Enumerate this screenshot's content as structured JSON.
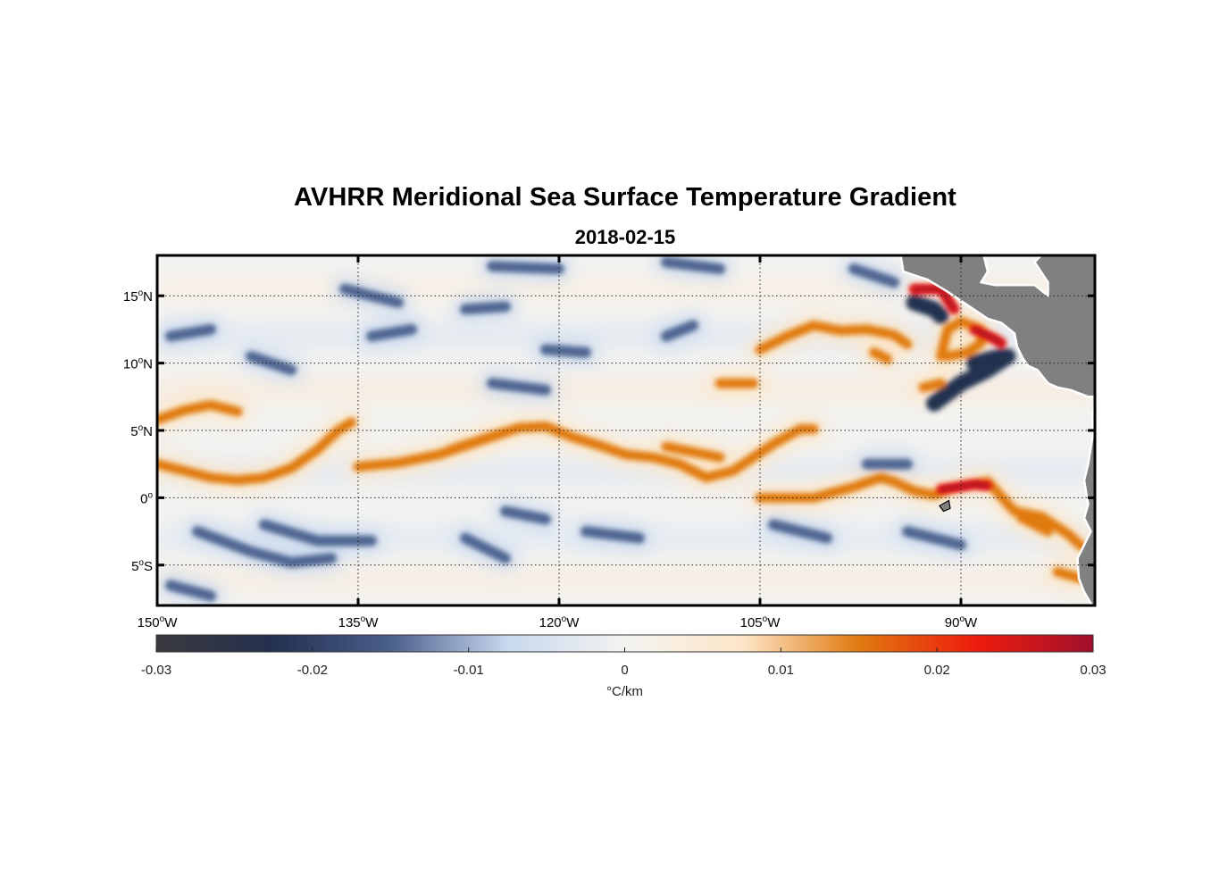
{
  "figure": {
    "title": "AVHRR Meridional Sea Surface Temperature Gradient",
    "subtitle": "2018-02-15"
  },
  "map": {
    "projection": "equirectangular",
    "lon_range": [
      -150,
      -80
    ],
    "lat_range": [
      -8,
      18
    ],
    "gridlines": true,
    "land_color": "#808080",
    "lon_ticks": [
      {
        "value": -150,
        "num": "150",
        "hemi": "W"
      },
      {
        "value": -135,
        "num": "135",
        "hemi": "W"
      },
      {
        "value": -120,
        "num": "120",
        "hemi": "W"
      },
      {
        "value": -105,
        "num": "105",
        "hemi": "W"
      },
      {
        "value": -90,
        "num": "90",
        "hemi": "W"
      }
    ],
    "lat_ticks": [
      {
        "value": 15,
        "num": "15",
        "hemi": "N"
      },
      {
        "value": 10,
        "num": "10",
        "hemi": "N"
      },
      {
        "value": 5,
        "num": "5",
        "hemi": "N"
      },
      {
        "value": 0,
        "num": "0",
        "hemi": ""
      },
      {
        "value": -5,
        "num": "5",
        "hemi": "S"
      }
    ]
  },
  "colorbar": {
    "min": -0.03,
    "max": 0.03,
    "ticks": [
      "-0.03",
      "-0.02",
      "-0.01",
      "0",
      "0.01",
      "0.02",
      "0.03"
    ],
    "label": "°C/km",
    "colors": [
      "#3a3a3e",
      "#24304f",
      "#4a5f8c",
      "#c8d8ee",
      "#f3f3f1",
      "#fde6c8",
      "#e07a10",
      "#ee1c0c",
      "#a0102c"
    ]
  },
  "features": {
    "positive_fronts": [
      {
        "name": "equatorial-front-west",
        "points": [
          [
            -150,
            2.5
          ],
          [
            -148,
            2.0
          ],
          [
            -146,
            1.5
          ],
          [
            -144,
            1.3
          ],
          [
            -142,
            1.5
          ],
          [
            -140,
            2.2
          ],
          [
            -138,
            3.6
          ],
          [
            -136.5,
            5.0
          ],
          [
            -135.5,
            5.6
          ]
        ]
      },
      {
        "name": "equatorial-front-central",
        "points": [
          [
            -135,
            2.3
          ],
          [
            -132,
            2.6
          ],
          [
            -129,
            3.2
          ],
          [
            -126,
            4.2
          ],
          [
            -123,
            5.2
          ],
          [
            -121,
            5.3
          ],
          [
            -119,
            4.5
          ],
          [
            -117,
            3.9
          ],
          [
            -115,
            3.2
          ],
          [
            -113,
            3.0
          ],
          [
            -111,
            2.5
          ],
          [
            -109,
            1.5
          ],
          [
            -107,
            2.0
          ],
          [
            -104,
            4.0
          ],
          [
            -102,
            5.1
          ],
          [
            -101,
            5.1
          ]
        ]
      },
      {
        "name": "equatorial-front-east",
        "points": [
          [
            -105,
            0.0
          ],
          [
            -101,
            0.0
          ],
          [
            -98,
            0.8
          ],
          [
            -96,
            1.5
          ],
          [
            -95,
            1.2
          ],
          [
            -93.5,
            0.5
          ],
          [
            -92,
            0.2
          ],
          [
            -90,
            0.9
          ],
          [
            -88,
            1.2
          ],
          [
            -86,
            -1.0
          ],
          [
            -84,
            -1.4
          ],
          [
            -82,
            -2.7
          ],
          [
            -81,
            -3.6
          ]
        ]
      },
      {
        "name": "upper-front-west",
        "points": [
          [
            -150,
            5.8
          ],
          [
            -148,
            6.5
          ],
          [
            -146,
            6.9
          ],
          [
            -144,
            6.4
          ]
        ]
      },
      {
        "name": "upper-front-east",
        "points": [
          [
            -105,
            11.0
          ],
          [
            -103,
            12.0
          ],
          [
            -101,
            12.8
          ],
          [
            -99,
            12.4
          ],
          [
            -97,
            12.5
          ],
          [
            -95,
            12.1
          ],
          [
            -94,
            11.4
          ]
        ]
      },
      {
        "name": "papagayo-ring",
        "points": [
          [
            -91.5,
            10.5
          ],
          [
            -91,
            12.5
          ],
          [
            -90,
            13.1
          ],
          [
            -88.5,
            12.5
          ],
          [
            -88.5,
            11.5
          ],
          [
            -89.5,
            10.8
          ],
          [
            -91,
            10.5
          ]
        ]
      },
      {
        "name": "front-patch-a",
        "points": [
          [
            -108,
            8.5
          ],
          [
            -105.5,
            8.5
          ]
        ]
      },
      {
        "name": "front-patch-b",
        "points": [
          [
            -112,
            3.8
          ],
          [
            -108,
            3.0
          ]
        ]
      },
      {
        "name": "front-patch-c",
        "points": [
          [
            -128,
            3.6
          ],
          [
            -124,
            4.9
          ]
        ]
      },
      {
        "name": "front-patch-d",
        "points": [
          [
            -85.5,
            -1.5
          ],
          [
            -83.5,
            -2.5
          ]
        ]
      },
      {
        "name": "front-patch-e",
        "points": [
          [
            -82.8,
            -5.5
          ],
          [
            -81.0,
            -6.0
          ]
        ]
      },
      {
        "name": "front-patch-f",
        "points": [
          [
            -91.5,
            8.5
          ],
          [
            -92.8,
            8.2
          ]
        ]
      },
      {
        "name": "front-patch-g",
        "points": [
          [
            -96.5,
            10.8
          ],
          [
            -95.5,
            10.3
          ]
        ]
      }
    ],
    "strong_patches": [
      {
        "name": "tehuantepec-patch",
        "points": [
          [
            -93.5,
            15.5
          ],
          [
            -91.5,
            15.5
          ],
          [
            -90.5,
            14.0
          ]
        ]
      },
      {
        "name": "papagayo-patch",
        "points": [
          [
            -89,
            12.5
          ],
          [
            -87.5,
            11.8
          ],
          [
            -87,
            11.5
          ]
        ]
      },
      {
        "name": "galapagos-patch",
        "points": [
          [
            -91.5,
            0.6
          ],
          [
            -89,
            1.0
          ],
          [
            -88,
            0.9
          ]
        ]
      }
    ],
    "negative_patches": [
      {
        "name": "neg-1",
        "points": [
          [
            -147,
            -2.5
          ],
          [
            -143,
            -4.0
          ],
          [
            -140,
            -4.8
          ],
          [
            -137,
            -4.5
          ]
        ]
      },
      {
        "name": "neg-2",
        "points": [
          [
            -142,
            -2.0
          ],
          [
            -138,
            -3.2
          ],
          [
            -134,
            -3.2
          ]
        ]
      },
      {
        "name": "neg-3",
        "points": [
          [
            -149,
            12.0
          ],
          [
            -146,
            12.5
          ]
        ]
      },
      {
        "name": "neg-4",
        "points": [
          [
            -143,
            10.5
          ],
          [
            -140,
            9.5
          ]
        ]
      },
      {
        "name": "neg-5",
        "points": [
          [
            -136,
            15.5
          ],
          [
            -132,
            14.5
          ]
        ]
      },
      {
        "name": "neg-6",
        "points": [
          [
            -127,
            14.0
          ],
          [
            -124,
            14.2
          ]
        ]
      },
      {
        "name": "neg-7",
        "points": [
          [
            -125,
            17.2
          ],
          [
            -120,
            17.0
          ]
        ]
      },
      {
        "name": "neg-8",
        "points": [
          [
            -112,
            17.5
          ],
          [
            -108,
            17.0
          ]
        ]
      },
      {
        "name": "neg-9",
        "points": [
          [
            -134,
            12.0
          ],
          [
            -131,
            12.5
          ]
        ]
      },
      {
        "name": "neg-10",
        "points": [
          [
            -121,
            11.0
          ],
          [
            -118,
            10.8
          ]
        ]
      },
      {
        "name": "neg-11",
        "points": [
          [
            -112,
            12.0
          ],
          [
            -110,
            12.8
          ]
        ]
      },
      {
        "name": "neg-12",
        "points": [
          [
            -125,
            8.5
          ],
          [
            -121,
            8.0
          ]
        ]
      },
      {
        "name": "neg-13",
        "points": [
          [
            -124,
            -1.0
          ],
          [
            -121,
            -1.6
          ]
        ]
      },
      {
        "name": "neg-14",
        "points": [
          [
            -118,
            -2.5
          ],
          [
            -114,
            -3.0
          ]
        ]
      },
      {
        "name": "neg-15",
        "points": [
          [
            -127,
            -3.0
          ],
          [
            -124,
            -4.5
          ]
        ]
      },
      {
        "name": "neg-16",
        "points": [
          [
            -104,
            -2.0
          ],
          [
            -100,
            -3.0
          ]
        ]
      },
      {
        "name": "neg-17",
        "points": [
          [
            -94,
            -2.5
          ],
          [
            -90,
            -3.5
          ]
        ]
      },
      {
        "name": "neg-18",
        "points": [
          [
            -149,
            -6.5
          ],
          [
            -146,
            -7.3
          ]
        ]
      },
      {
        "name": "neg-19",
        "points": [
          [
            -98,
            17.0
          ],
          [
            -95,
            16.0
          ]
        ]
      },
      {
        "name": "neg-20",
        "points": [
          [
            -97,
            2.5
          ],
          [
            -94,
            2.5
          ]
        ]
      }
    ],
    "strong_negative_patches": [
      {
        "name": "tehuantepec-dark",
        "points": [
          [
            -93.5,
            14.5
          ],
          [
            -92,
            14.0
          ],
          [
            -91.5,
            13.5
          ]
        ]
      },
      {
        "name": "papagayo-dark",
        "points": [
          [
            -92,
            7.0
          ],
          [
            -90,
            8.5
          ],
          [
            -88,
            9.5
          ],
          [
            -86.5,
            10.5
          ]
        ]
      },
      {
        "name": "gulf-dark",
        "points": [
          [
            -89,
            10.0
          ],
          [
            -87,
            10.5
          ]
        ]
      }
    ],
    "islands": [
      {
        "name": "galapagos-islands",
        "points": [
          [
            -91.6,
            -0.6
          ],
          [
            -90.9,
            -0.2
          ],
          [
            -90.8,
            -0.8
          ],
          [
            -91.3,
            -1.0
          ]
        ]
      }
    ],
    "land": [
      {
        "name": "central-america",
        "points": [
          [
            -98,
            18
          ],
          [
            -94.5,
            18
          ],
          [
            -94.3,
            16.8
          ],
          [
            -92.5,
            16.2
          ],
          [
            -91,
            15.3
          ],
          [
            -89.5,
            14.3
          ],
          [
            -88,
            13.3
          ],
          [
            -87,
            13.0
          ],
          [
            -86,
            12.2
          ],
          [
            -85.8,
            11.2
          ],
          [
            -85.4,
            10.4
          ],
          [
            -85.0,
            9.8
          ],
          [
            -84.3,
            9.5
          ],
          [
            -83.5,
            8.5
          ],
          [
            -82.8,
            8.2
          ],
          [
            -81.8,
            8.0
          ],
          [
            -80.5,
            7.5
          ],
          [
            -80,
            7.5
          ],
          [
            -80,
            18
          ],
          [
            -84,
            18
          ],
          [
            -84.5,
            17.5
          ],
          [
            -83.5,
            16.0
          ],
          [
            -83.5,
            15.0
          ],
          [
            -84.5,
            15.8
          ],
          [
            -86,
            15.8
          ],
          [
            -87.5,
            15.8
          ],
          [
            -88.5,
            16.0
          ],
          [
            -88.0,
            16.8
          ],
          [
            -88.3,
            18.0
          ]
        ]
      },
      {
        "name": "south-america",
        "points": [
          [
            -80,
            7.0
          ],
          [
            -80.2,
            6.0
          ],
          [
            -80.1,
            5.0
          ],
          [
            -80.5,
            2.5
          ],
          [
            -80.8,
            1.3
          ],
          [
            -80.5,
            -0.5
          ],
          [
            -80.8,
            -1.5
          ],
          [
            -80.3,
            -2.5
          ],
          [
            -80.8,
            -3.5
          ],
          [
            -81.3,
            -4.5
          ],
          [
            -81.2,
            -6.0
          ],
          [
            -80.8,
            -7.0
          ],
          [
            -80.2,
            -8.0
          ],
          [
            -80,
            -8.0
          ]
        ]
      }
    ]
  }
}
